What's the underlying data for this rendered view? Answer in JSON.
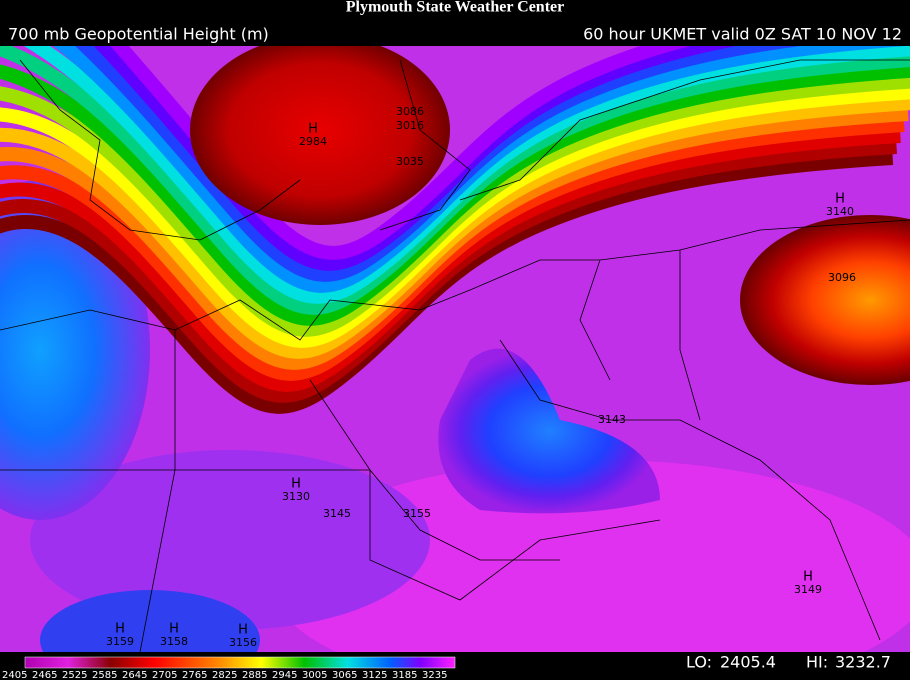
{
  "header": {
    "title": "Plymouth State Weather Center",
    "left": "700 mb Geopotential Height (m)",
    "right": "60 hour UKMET valid 0Z SAT 10 NOV 12"
  },
  "map": {
    "high_symbol": "H",
    "labels": [
      3086,
      3016,
      2984,
      3035,
      3140,
      3096,
      3143,
      3130,
      3145,
      3155,
      3149,
      3159,
      3158,
      3156
    ]
  },
  "colorbar": {
    "ticks": [
      2405,
      2465,
      2525,
      2585,
      2645,
      2705,
      2765,
      2825,
      2885,
      2945,
      3005,
      3065,
      3125,
      3185,
      3235
    ]
  },
  "footer": {
    "lo_label": "LO:",
    "lo": 2405.4,
    "hi_label": "HI:",
    "hi": 3232.7
  }
}
